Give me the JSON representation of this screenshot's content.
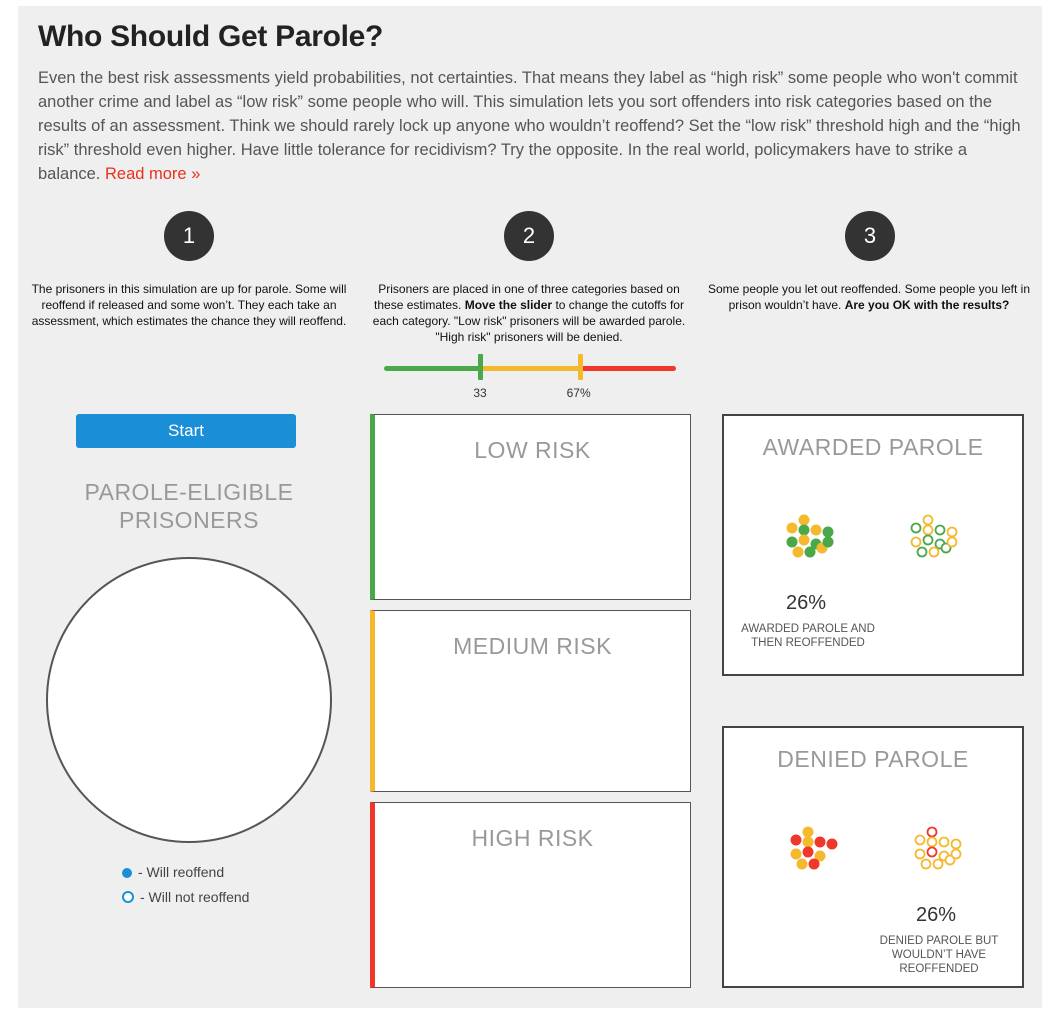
{
  "header": {
    "title": "Who Should Get Parole?",
    "intro": "Even the best risk assessments yield probabilities, not certainties. That means they label as “high risk” some people who won't commit another crime and label as “low risk” some people who will. This simulation lets you sort offenders into risk categories based on the results of an assessment. Think we should rarely lock up anyone who wouldn’t reoffend? Set the “low risk” threshold high and the “high risk” threshold even higher. Have little tolerance for recidivism? Try the opposite. In the real world, policymakers have to strike a balance.",
    "read_more": "Read more »"
  },
  "steps": [
    {
      "number": "1",
      "text": "The prisoners in this simulation are up for parole. Some will reoffend if released and some won’t. They each take an assessment, which estimates the chance they will reoffend."
    },
    {
      "number": "2",
      "text_a": "Prisoners are placed in one of three categories based on these estimates.",
      "text_bold": "Move the slider",
      "text_b": "to change the cutoffs for each category. \"Low risk\" prisoners will be awarded parole. \"High risk\" prisoners will be denied."
    },
    {
      "number": "3",
      "text_a": "Some people you let out reoffended. Some people you left in prison wouldn’t have.",
      "text_bold": "Are you OK with the results?"
    }
  ],
  "slider": {
    "low_value": 33,
    "high_value": 67,
    "low_label": "33",
    "high_label": "67%",
    "colors": {
      "low": "#4aa84a",
      "medium": "#f5b92e",
      "high": "#f0372b"
    }
  },
  "start_button": {
    "label": "Start"
  },
  "pool": {
    "title": "PAROLE-ELIGIBLE PRISONERS",
    "legend_reoffend": "- Will reoffend",
    "legend_not_reoffend": "- Will not reoffend",
    "legend_color": "#1a8fd8"
  },
  "risk_boxes": {
    "low": "LOW RISK",
    "medium": "MEDIUM RISK",
    "high": "HIGH RISK"
  },
  "results": {
    "awarded": {
      "title": "AWARDED PAROLE",
      "percent": "26%",
      "caption": "AWARDED PAROLE AND THEN REOFFENDED"
    },
    "denied": {
      "title": "DENIED PAROLE",
      "percent": "26%",
      "caption": "DENIED PAROLE BUT WOULDN’T HAVE REOFFENDED"
    }
  },
  "dot_clusters": {
    "awarded_reoffended": {
      "filled": true,
      "colors": [
        "yellow",
        "yellow",
        "green",
        "yellow",
        "green",
        "green",
        "yellow",
        "green",
        "yellow",
        "green",
        "yellow",
        "green"
      ]
    },
    "awarded_not_reoffended": {
      "filled": false,
      "colors": [
        "yellow",
        "green",
        "yellow",
        "green",
        "yellow",
        "yellow",
        "green",
        "green",
        "green",
        "yellow",
        "green",
        "yellow"
      ]
    },
    "denied_reoffended": {
      "filled": true,
      "colors": [
        "yellow",
        "red",
        "yellow",
        "red",
        "red",
        "yellow",
        "red",
        "yellow",
        "yellow",
        "red"
      ]
    },
    "denied_not_reoffended": {
      "filled": false,
      "colors": [
        "red",
        "yellow",
        "yellow",
        "yellow",
        "yellow",
        "yellow",
        "red",
        "yellow",
        "yellow",
        "yellow",
        "yellow",
        "yellow"
      ]
    }
  }
}
